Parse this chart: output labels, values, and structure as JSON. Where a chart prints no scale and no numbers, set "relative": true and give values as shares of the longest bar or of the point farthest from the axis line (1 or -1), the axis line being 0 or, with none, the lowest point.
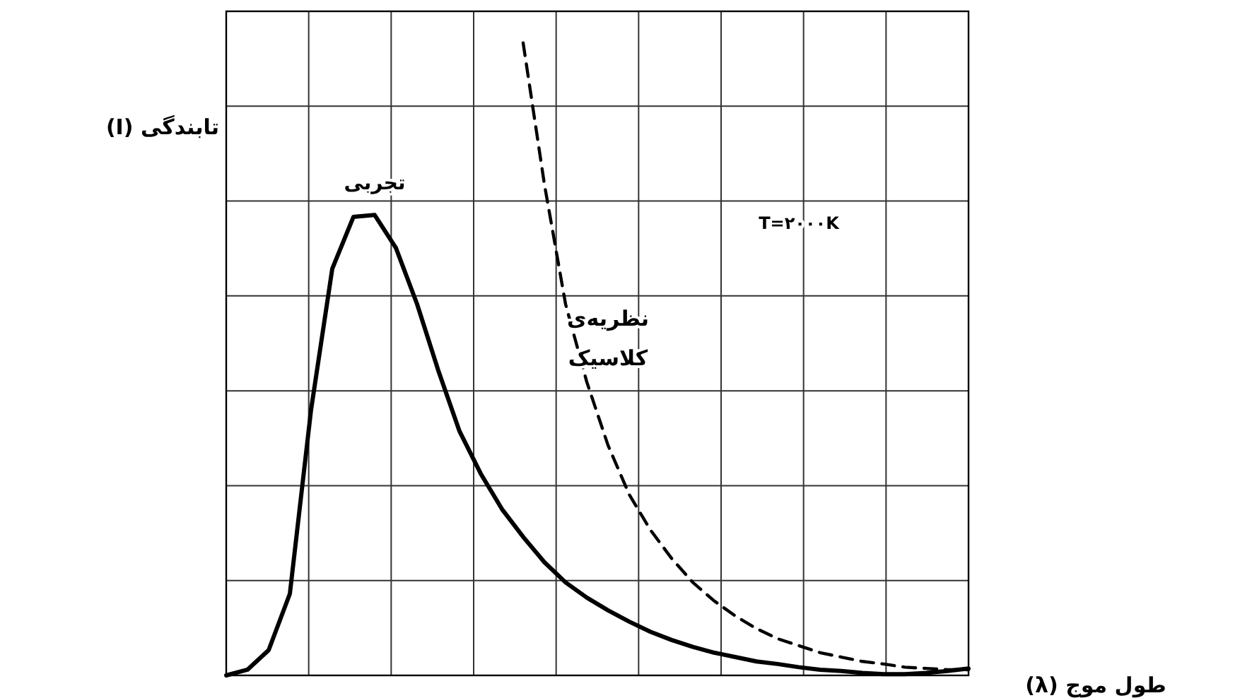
{
  "chart_data": {
    "type": "line",
    "relative": true,
    "grid": true,
    "marker": "none",
    "ylabel": "(I) تابندگی",
    "xlabel": "طول موج (λ)",
    "annotations": [
      "T=۲۰۰۰K"
    ],
    "categories": [
      null,
      null,
      null,
      null,
      null,
      null,
      null,
      null,
      null,
      null,
      null,
      null,
      null,
      null,
      null,
      null,
      null,
      null,
      null,
      null,
      null,
      null,
      null,
      null,
      null,
      null,
      null,
      null,
      null,
      null,
      null,
      null,
      null,
      null,
      null,
      null
    ],
    "series": [
      {
        "name": "تجربی",
        "color": "#000000",
        "line_style": "solid",
        "values": [
          0,
          0.009,
          0.04,
          0.129,
          0.42,
          0.643,
          0.725,
          0.728,
          0.676,
          0.587,
          0.482,
          0.386,
          0.319,
          0.263,
          0.219,
          0.179,
          0.147,
          0.123,
          0.103,
          0.085,
          0.069,
          0.056,
          0.045,
          0.036,
          0.029,
          0.022,
          0.018,
          0.013,
          0.009,
          0.007,
          0.004,
          0.002,
          0.002,
          0.004,
          0.007,
          0.011
        ]
      },
      {
        "name": "نظریه‌ی کلاسیک",
        "color": "#000000",
        "line_style": "dashed",
        "values": [
          null,
          null,
          null,
          null,
          null,
          null,
          null,
          null,
          null,
          null,
          null,
          null,
          null,
          null,
          1.0,
          0.777,
          0.587,
          0.464,
          0.364,
          0.286,
          0.23,
          0.185,
          0.147,
          0.118,
          0.094,
          0.074,
          0.058,
          0.047,
          0.036,
          0.029,
          0.022,
          0.018,
          0.013,
          0.011,
          0.009,
          0.009
        ]
      }
    ]
  }
}
